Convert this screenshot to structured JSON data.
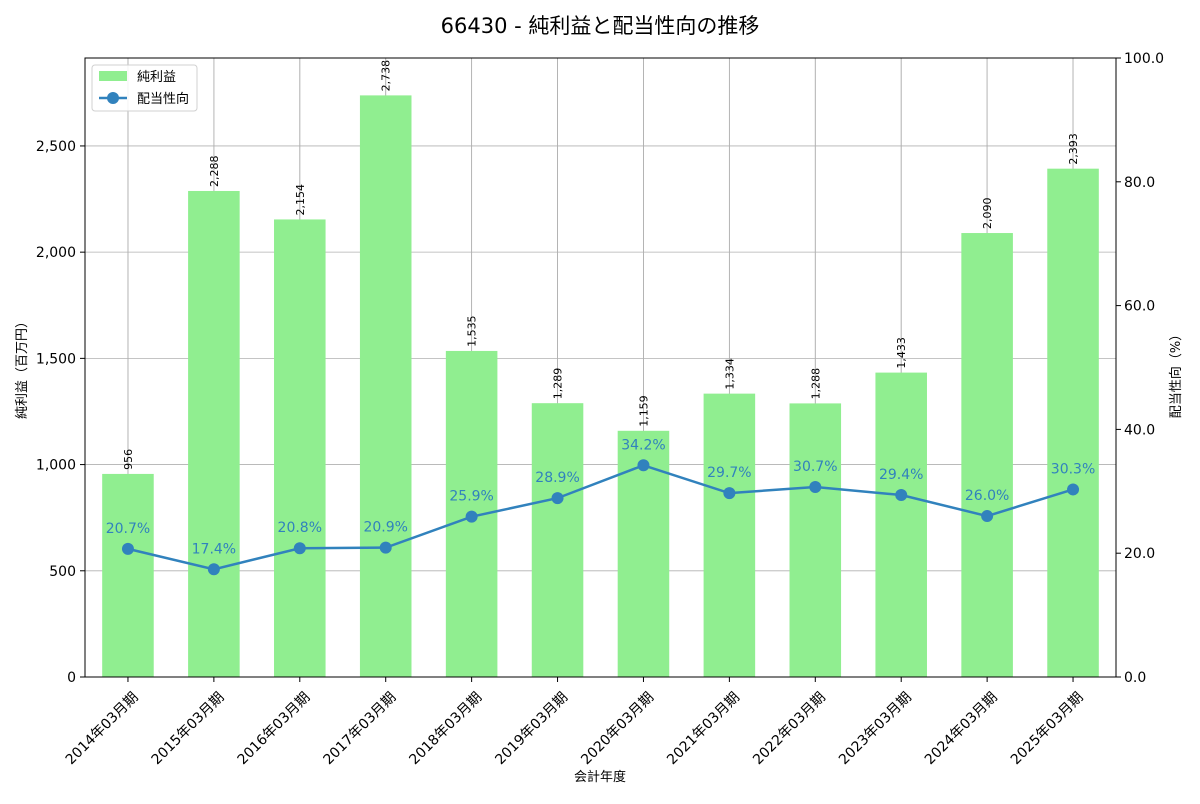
{
  "chart_data": {
    "type": "bar+line",
    "title": "66430 - 純利益と配当性向の推移",
    "xlabel": "会計年度",
    "ylabel": "純利益（百万円）",
    "y2label": "配当性向（%）",
    "categories": [
      "2014年03月期",
      "2015年03月期",
      "2016年03月期",
      "2017年03月期",
      "2018年03月期",
      "2019年03月期",
      "2020年03月期",
      "2021年03月期",
      "2022年03月期",
      "2023年03月期",
      "2024年03月期",
      "2025年03月期"
    ],
    "series": [
      {
        "name": "純利益",
        "type": "bar",
        "axis": "left",
        "color": "#90ee90",
        "values": [
          956,
          2288,
          2154,
          2738,
          1535,
          1289,
          1159,
          1334,
          1288,
          1433,
          2090,
          2393
        ],
        "labels": [
          "956",
          "2,288",
          "2,154",
          "2,738",
          "1,535",
          "1,289",
          "1,159",
          "1,334",
          "1,288",
          "1,433",
          "2,090",
          "2,393"
        ]
      },
      {
        "name": "配当性向",
        "type": "line",
        "axis": "right",
        "color": "#3182bd",
        "values": [
          20.7,
          17.4,
          20.8,
          20.9,
          25.9,
          28.9,
          34.2,
          29.7,
          30.7,
          29.4,
          26.0,
          30.3
        ],
        "labels": [
          "20.7%",
          "17.4%",
          "20.8%",
          "20.9%",
          "25.9%",
          "28.9%",
          "34.2%",
          "29.7%",
          "30.7%",
          "29.4%",
          "26.0%",
          "30.3%"
        ]
      }
    ],
    "ylim": [
      0,
      2914
    ],
    "y2lim": [
      0,
      100
    ],
    "yticks": [
      0,
      500,
      1000,
      1500,
      2000,
      2500
    ],
    "yticklabels": [
      "0",
      "500",
      "1,000",
      "1,500",
      "2,000",
      "2,500"
    ],
    "y2ticks": [
      0,
      20,
      40,
      60,
      80,
      100
    ],
    "y2ticklabels": [
      "0.0",
      "20.0",
      "40.0",
      "60.0",
      "80.0",
      "100.0"
    ],
    "grid": true,
    "legend_position": "upper left",
    "legend": [
      "純利益",
      "配当性向"
    ]
  }
}
